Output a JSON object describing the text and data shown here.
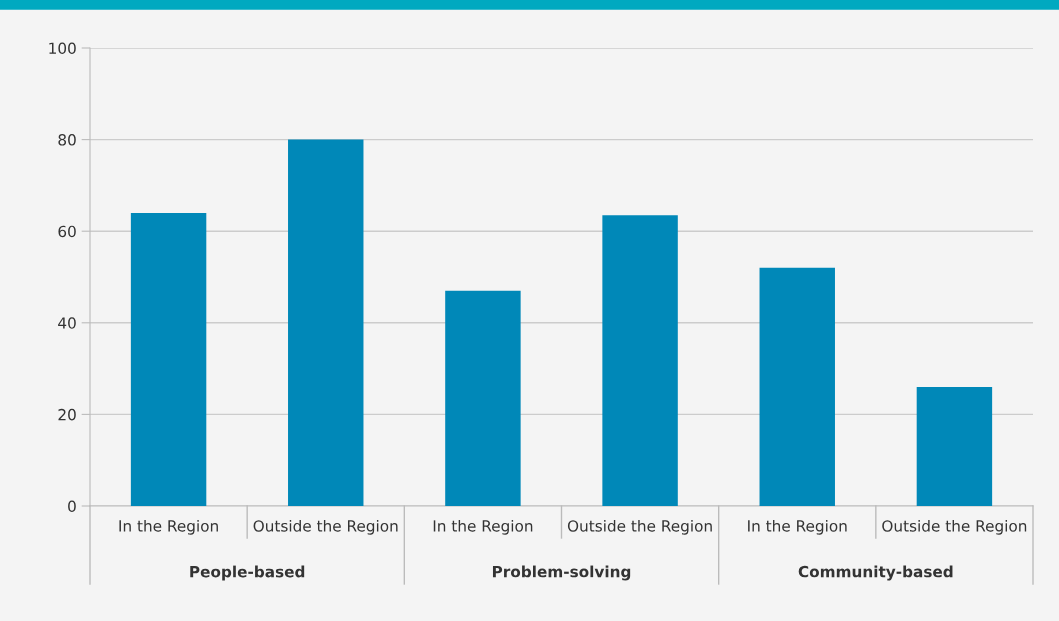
{
  "chart_data": {
    "type": "bar",
    "categories": [
      "In the Region",
      "Outside the Region",
      "In the Region",
      "Outside the Region",
      "In the Region",
      "Outside the Region"
    ],
    "values": [
      64,
      80,
      47,
      63.5,
      52,
      26
    ],
    "color": "#0088b8",
    "ylim": [
      0,
      100
    ],
    "yticks": [
      0,
      20,
      40,
      60,
      80,
      100
    ],
    "grid": "y",
    "annotations": [
      "People-based",
      "Problem-solving",
      "Community-based"
    ]
  }
}
